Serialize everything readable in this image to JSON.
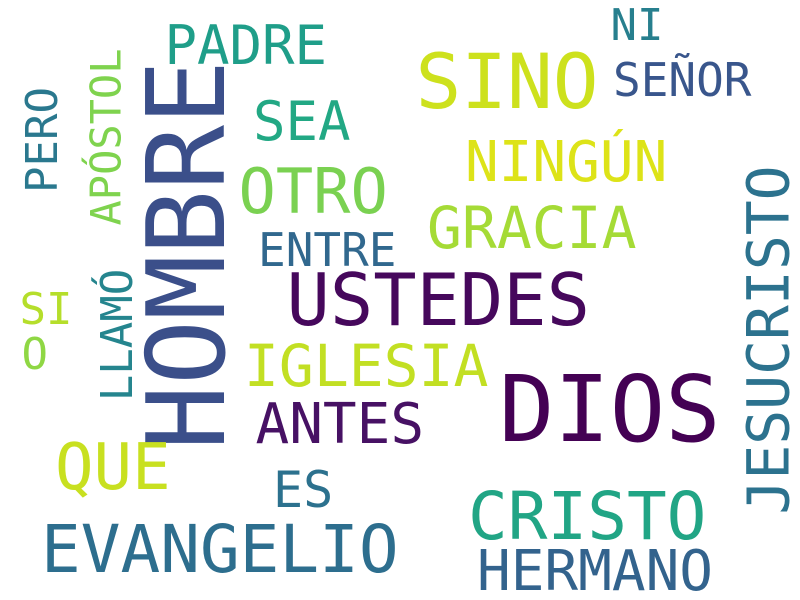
{
  "words": [
    {
      "id": "hombre",
      "text": "HOMBRE",
      "color": "#3b4f8a",
      "vertical": true
    },
    {
      "id": "dios",
      "text": "DIOS",
      "color": "#440154",
      "vertical": false
    },
    {
      "id": "sino",
      "text": "SINO",
      "color": "#cde11d",
      "vertical": false
    },
    {
      "id": "ustedes",
      "text": "USTEDES",
      "color": "#46085c",
      "vertical": false
    },
    {
      "id": "jesucristo",
      "text": "JESUCRISTO",
      "color": "#2c728e",
      "vertical": true
    },
    {
      "id": "evangelio",
      "text": "EVANGELIO",
      "color": "#2d6e8e",
      "vertical": false
    },
    {
      "id": "cristo",
      "text": "CRISTO",
      "color": "#21a585",
      "vertical": false
    },
    {
      "id": "otro",
      "text": "OTRO",
      "color": "#7ad151",
      "vertical": false
    },
    {
      "id": "gracia",
      "text": "GRACIA",
      "color": "#a5db36",
      "vertical": false
    },
    {
      "id": "iglesia",
      "text": "IGLESIA",
      "color": "#c2df23",
      "vertical": false
    },
    {
      "id": "ningun",
      "text": "NINGÚN",
      "color": "#dde318",
      "vertical": false
    },
    {
      "id": "hermano",
      "text": "HERMANO",
      "color": "#33638d",
      "vertical": false
    },
    {
      "id": "que",
      "text": "QUE",
      "color": "#c8e020",
      "vertical": false
    },
    {
      "id": "antes",
      "text": "ANTES",
      "color": "#471164",
      "vertical": false
    },
    {
      "id": "padre",
      "text": "PADRE",
      "color": "#1f9e89",
      "vertical": false
    },
    {
      "id": "sea",
      "text": "SEA",
      "color": "#22a884",
      "vertical": false
    },
    {
      "id": "apostol",
      "text": "APÓSTOL",
      "color": "#7fd34e",
      "vertical": true
    },
    {
      "id": "senor",
      "text": "SEÑOR",
      "color": "#39568c",
      "vertical": false
    },
    {
      "id": "entre",
      "text": "ENTRE",
      "color": "#31688e",
      "vertical": false
    },
    {
      "id": "pero",
      "text": "PERO",
      "color": "#2a788e",
      "vertical": true
    },
    {
      "id": "es",
      "text": "ES",
      "color": "#2c718e",
      "vertical": false
    },
    {
      "id": "llamo",
      "text": "LLAMÓ",
      "color": "#25858e",
      "vertical": true
    },
    {
      "id": "ni",
      "text": "NI",
      "color": "#277f8e",
      "vertical": false
    },
    {
      "id": "si",
      "text": "SI",
      "color": "#b5de2b",
      "vertical": false
    },
    {
      "id": "o",
      "text": "O",
      "color": "#8fd744",
      "vertical": false
    }
  ]
}
